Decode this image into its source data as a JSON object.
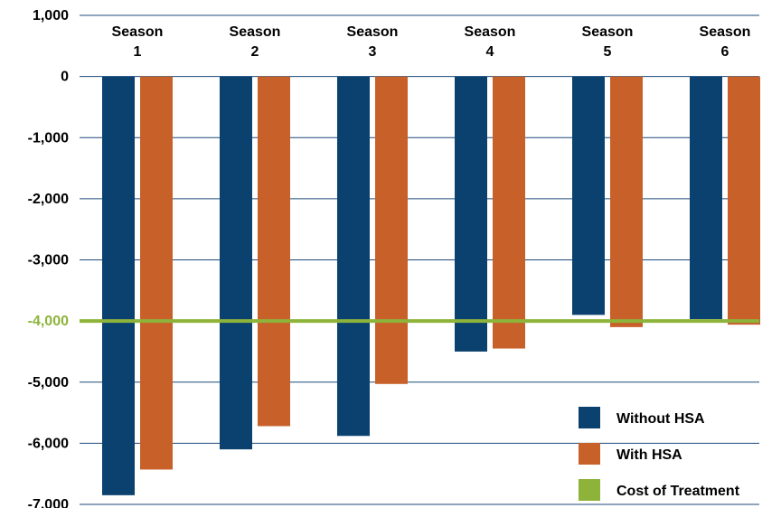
{
  "chart_data": {
    "type": "bar",
    "categories": [
      [
        "Season",
        "1"
      ],
      [
        "Season",
        "2"
      ],
      [
        "Season",
        "3"
      ],
      [
        "Season",
        "4"
      ],
      [
        "Season",
        "5"
      ],
      [
        "Season",
        "6"
      ]
    ],
    "series": [
      {
        "name": "Without HSA",
        "color": "#0b416f",
        "values": [
          -6850,
          -6100,
          -5880,
          -4500,
          -3900,
          -3970
        ]
      },
      {
        "name": "With HSA",
        "color": "#c8602a",
        "values": [
          -6430,
          -5720,
          -5030,
          -4450,
          -4100,
          -4060
        ]
      }
    ],
    "reference_line": {
      "name": "Cost of Treatment",
      "value": -4000,
      "color": "#8db33a"
    },
    "y_ticks": [
      "1,000",
      "0",
      "-1,000",
      "-2,000",
      "-3,000",
      "-4,000",
      "-5,000",
      "-6,000",
      "-7,000"
    ],
    "y_tick_values": [
      1000,
      0,
      -1000,
      -2000,
      -3000,
      -4000,
      -5000,
      -6000,
      -7000
    ],
    "highlight_tick": "-4,000",
    "ylim": [
      -7000,
      1000
    ],
    "grid": true,
    "gridline_color": "#1b4a7a",
    "legend_position": "bottom-right"
  }
}
